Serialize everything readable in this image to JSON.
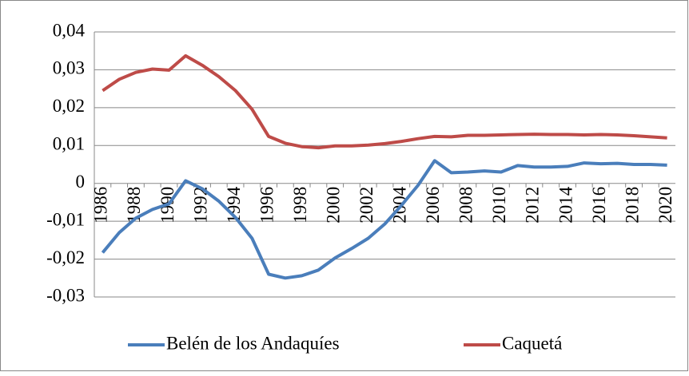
{
  "chart_data": {
    "type": "line",
    "categories": [
      "1986",
      null,
      "1988",
      null,
      "1990",
      null,
      "1992",
      null,
      "1994",
      null,
      "1996",
      null,
      "1998",
      null,
      "2000",
      null,
      "2002",
      null,
      "2004",
      null,
      "2006",
      null,
      "2008",
      null,
      "2010",
      null,
      "2012",
      null,
      "2014",
      null,
      "2016",
      null,
      "2018",
      null,
      "2020"
    ],
    "series": [
      {
        "name": "Belén de los Andaquíes",
        "color": "#4a7ebb",
        "values": [
          -0.0183,
          -0.013,
          -0.0092,
          -0.0069,
          -0.0054,
          0.0007,
          -0.0014,
          -0.0047,
          -0.009,
          -0.0145,
          -0.024,
          -0.025,
          -0.0244,
          -0.0229,
          -0.0197,
          -0.0172,
          -0.0145,
          -0.0107,
          -0.0058,
          -0.0005,
          0.006,
          0.0028,
          0.003,
          0.0033,
          0.003,
          0.0047,
          0.0043,
          0.0043,
          0.0045,
          0.0054,
          0.0052,
          0.0053,
          0.005,
          0.005,
          0.0048
        ]
      },
      {
        "name": "Caquetá",
        "color": "#be4b48",
        "values": [
          0.0245,
          0.0275,
          0.0293,
          0.0302,
          0.0299,
          0.0337,
          0.0312,
          0.0282,
          0.0245,
          0.0196,
          0.0124,
          0.0106,
          0.0097,
          0.0094,
          0.0099,
          0.0099,
          0.0101,
          0.0105,
          0.0111,
          0.0118,
          0.0124,
          0.0123,
          0.0127,
          0.0127,
          0.0128,
          0.0129,
          0.013,
          0.0129,
          0.0129,
          0.0128,
          0.0129,
          0.0128,
          0.0126,
          0.0123,
          0.012
        ]
      }
    ],
    "ylim": [
      -0.03,
      0.04
    ],
    "yticks": [
      {
        "value": -0.03,
        "label": "-0,03"
      },
      {
        "value": -0.02,
        "label": "-0,02"
      },
      {
        "value": -0.01,
        "label": "-0,01"
      },
      0,
      {
        "value": 0.01,
        "label": "0,01"
      },
      {
        "value": 0.02,
        "label": "0,02"
      },
      {
        "value": 0.03,
        "label": "0,03"
      },
      {
        "value": 0.04,
        "label": "0,04"
      }
    ],
    "grid": true,
    "legend": "bottom"
  }
}
